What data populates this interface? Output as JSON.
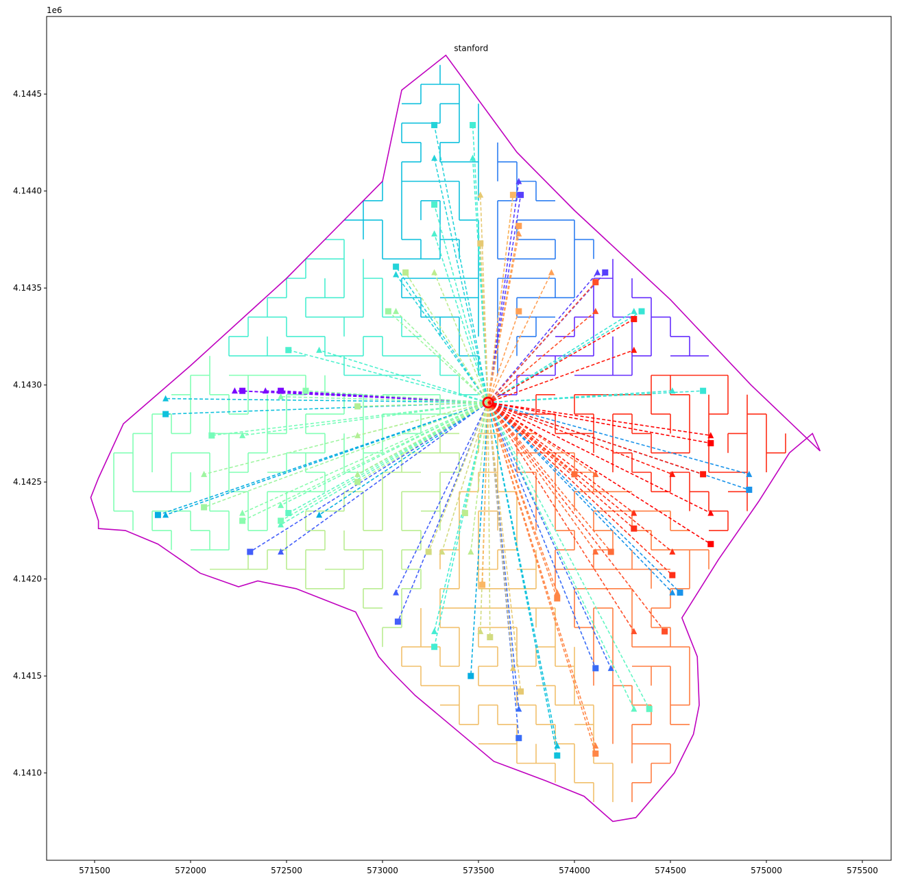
{
  "chart_data": {
    "type": "line",
    "title": "",
    "xlabel": "",
    "ylabel": "",
    "annotation": "stanford",
    "offset_label": "1e6",
    "xlim": [
      571250,
      575650
    ],
    "ylim": [
      4140550,
      4144900
    ],
    "xticks": [
      571500,
      572000,
      572500,
      573000,
      573500,
      574000,
      574500,
      575000,
      575500
    ],
    "xtick_labels": [
      "571500",
      "572000",
      "572500",
      "573000",
      "573500",
      "574000",
      "574500",
      "575000",
      "575500"
    ],
    "yticks": [
      4141000,
      4141500,
      4142000,
      4142500,
      4143000,
      4143500,
      4144000,
      4144500
    ],
    "ytick_labels": [
      "4.1410",
      "4.1415",
      "4.1420",
      "4.1425",
      "4.1430",
      "4.1435",
      "4.1440",
      "4.1445"
    ],
    "grid": false,
    "legend": "none",
    "boundary_color": "#bf00bf",
    "hub": [
      573550,
      4142910
    ],
    "boundary": [
      [
        573330,
        4144700
      ],
      [
        573100,
        4144520
      ],
      [
        573000,
        4144050
      ],
      [
        572500,
        4143550
      ],
      [
        572000,
        4143100
      ],
      [
        571650,
        4142800
      ],
      [
        571520,
        4142520
      ],
      [
        571480,
        4142420
      ],
      [
        571520,
        4142300
      ],
      [
        571520,
        4142260
      ],
      [
        571660,
        4142250
      ],
      [
        571830,
        4142180
      ],
      [
        572050,
        4142030
      ],
      [
        572250,
        4141960
      ],
      [
        572350,
        4141990
      ],
      [
        572550,
        4141950
      ],
      [
        572860,
        4141830
      ],
      [
        572980,
        4141600
      ],
      [
        573050,
        4141520
      ],
      [
        573170,
        4141400
      ],
      [
        573580,
        4141060
      ],
      [
        573850,
        4140960
      ],
      [
        574050,
        4140880
      ],
      [
        574200,
        4140750
      ],
      [
        574320,
        4140770
      ],
      [
        574520,
        4141000
      ],
      [
        574620,
        4141200
      ],
      [
        574650,
        4141350
      ],
      [
        574640,
        4141600
      ],
      [
        574560,
        4141800
      ],
      [
        574750,
        4142100
      ],
      [
        574960,
        4142400
      ],
      [
        575120,
        4142650
      ],
      [
        575240,
        4142750
      ],
      [
        575280,
        4142660
      ],
      [
        574920,
        4143000
      ],
      [
        574500,
        4143440
      ],
      [
        574000,
        4143900
      ],
      [
        573700,
        4144200
      ]
    ],
    "color_stops": [
      "#8000ff",
      "#4062fa",
      "#01b3df",
      "#40ecd4",
      "#80ffb4",
      "#c0eb8d",
      "#ffb360",
      "#ff6232",
      "#ff0000"
    ],
    "cells_x": [
      571550,
      575220
    ],
    "cells_y": [
      4140800,
      4144650
    ],
    "cell_size": 100,
    "sectors": 9,
    "sector_start_degrees": 10,
    "series": [
      {
        "color_index": 0.01,
        "nodes": [
          [
            572230,
            4142970
          ],
          [
            572270,
            4142970
          ],
          [
            572390,
            4142970
          ],
          [
            572470,
            4142970
          ]
        ]
      },
      {
        "color_index": 0.08,
        "nodes": [
          [
            573710,
            4144050
          ],
          [
            573720,
            4143980
          ],
          [
            574120,
            4143580
          ],
          [
            574160,
            4143580
          ]
        ]
      },
      {
        "color_index": 0.12,
        "nodes": [
          [
            572470,
            4142140
          ],
          [
            572310,
            4142140
          ],
          [
            573070,
            4141930
          ],
          [
            573080,
            4141780
          ]
        ]
      },
      {
        "color_index": 0.14,
        "nodes": [
          [
            573710,
            4141330
          ],
          [
            573710,
            4141180
          ],
          [
            574190,
            4141540
          ],
          [
            574110,
            4141540
          ]
        ]
      },
      {
        "color_index": 0.2,
        "nodes": [
          [
            574910,
            4142540
          ],
          [
            574910,
            4142460
          ],
          [
            574510,
            4141930
          ],
          [
            574550,
            4141930
          ]
        ]
      },
      {
        "color_index": 0.24,
        "nodes": [
          [
            571870,
            4142330
          ],
          [
            571830,
            4142330
          ],
          [
            572670,
            4142330
          ],
          [
            573460,
            4141500
          ]
        ]
      },
      {
        "color_index": 0.28,
        "nodes": [
          [
            571870,
            4142930
          ],
          [
            571870,
            4142850
          ],
          [
            573910,
            4141140
          ],
          [
            573910,
            4141090
          ]
        ]
      },
      {
        "color_index": 0.32,
        "nodes": [
          [
            573270,
            4144170
          ],
          [
            573270,
            4144340
          ],
          [
            573070,
            4143570
          ],
          [
            573070,
            4143610
          ]
        ]
      },
      {
        "color_index": 0.36,
        "nodes": [
          [
            574510,
            4142970
          ],
          [
            574670,
            4142970
          ],
          [
            574310,
            4143380
          ],
          [
            574350,
            4143380
          ]
        ]
      },
      {
        "color_index": 0.38,
        "nodes": [
          [
            573470,
            4144170
          ],
          [
            573470,
            4144340
          ],
          [
            573270,
            4141730
          ],
          [
            573270,
            4141650
          ]
        ]
      },
      {
        "color_index": 0.4,
        "nodes": [
          [
            573270,
            4143780
          ],
          [
            573270,
            4143930
          ],
          [
            572670,
            4143180
          ],
          [
            572510,
            4143180
          ]
        ]
      },
      {
        "color_index": 0.44,
        "nodes": [
          [
            572470,
            4142280
          ],
          [
            572510,
            4142340
          ],
          [
            574310,
            4141330
          ],
          [
            574390,
            4141330
          ]
        ]
      },
      {
        "color_index": 0.48,
        "nodes": [
          [
            572270,
            4142740
          ],
          [
            572110,
            4142740
          ],
          [
            572470,
            4142380
          ],
          [
            572470,
            4142300
          ]
        ]
      },
      {
        "color_index": 0.52,
        "nodes": [
          [
            572270,
            4142340
          ],
          [
            572270,
            4142300
          ],
          [
            572470,
            4142940
          ],
          [
            572600,
            4142970
          ]
        ]
      },
      {
        "color_index": 0.56,
        "nodes": [
          [
            572070,
            4142540
          ],
          [
            572070,
            4142370
          ],
          [
            573070,
            4143380
          ],
          [
            573030,
            4143380
          ]
        ]
      },
      {
        "color_index": 0.6,
        "nodes": [
          [
            572870,
            4142740
          ],
          [
            572870,
            4142890
          ],
          [
            572870,
            4142540
          ],
          [
            572870,
            4142500
          ]
        ]
      },
      {
        "color_index": 0.62,
        "nodes": [
          [
            573270,
            4143580
          ],
          [
            573120,
            4143580
          ],
          [
            573460,
            4142140
          ],
          [
            573430,
            4142340
          ]
        ]
      },
      {
        "color_index": 0.66,
        "nodes": [
          [
            573310,
            4142140
          ],
          [
            573240,
            4142140
          ],
          [
            573510,
            4141730
          ],
          [
            573560,
            4141700
          ]
        ]
      },
      {
        "color_index": 0.7,
        "nodes": [
          [
            573510,
            4143980
          ],
          [
            573510,
            4143730
          ],
          [
            573680,
            4141540
          ],
          [
            573720,
            4141420
          ]
        ]
      },
      {
        "color_index": 0.74,
        "nodes": [
          [
            573680,
            4143980
          ],
          [
            573680,
            4143980
          ],
          [
            573520,
            4141980
          ],
          [
            573520,
            4141970
          ]
        ]
      },
      {
        "color_index": 0.78,
        "nodes": [
          [
            573710,
            4143780
          ],
          [
            573710,
            4143820
          ],
          [
            573880,
            4143580
          ],
          [
            573710,
            4143380
          ]
        ]
      },
      {
        "color_index": 0.82,
        "nodes": [
          [
            573910,
            4141930
          ],
          [
            573910,
            4141900
          ],
          [
            574110,
            4141140
          ],
          [
            574110,
            4141100
          ]
        ]
      },
      {
        "color_index": 0.86,
        "nodes": [
          [
            574110,
            4142540
          ],
          [
            574000,
            4142540
          ],
          [
            574110,
            4142140
          ],
          [
            574190,
            4142140
          ]
        ]
      },
      {
        "color_index": 0.9,
        "nodes": [
          [
            574310,
            4141730
          ],
          [
            574470,
            4141730
          ],
          [
            574110,
            4143380
          ],
          [
            574110,
            4143530
          ]
        ]
      },
      {
        "color_index": 0.94,
        "nodes": [
          [
            574310,
            4142340
          ],
          [
            574310,
            4142260
          ],
          [
            574510,
            4142140
          ],
          [
            574510,
            4142020
          ]
        ]
      },
      {
        "color_index": 0.97,
        "nodes": [
          [
            574510,
            4142540
          ],
          [
            574670,
            4142540
          ],
          [
            574310,
            4143180
          ],
          [
            574310,
            4143340
          ]
        ]
      },
      {
        "color_index": 1.0,
        "nodes": [
          [
            574710,
            4142740
          ],
          [
            574710,
            4142700
          ],
          [
            574710,
            4142340
          ],
          [
            574710,
            4142180
          ]
        ]
      }
    ]
  }
}
